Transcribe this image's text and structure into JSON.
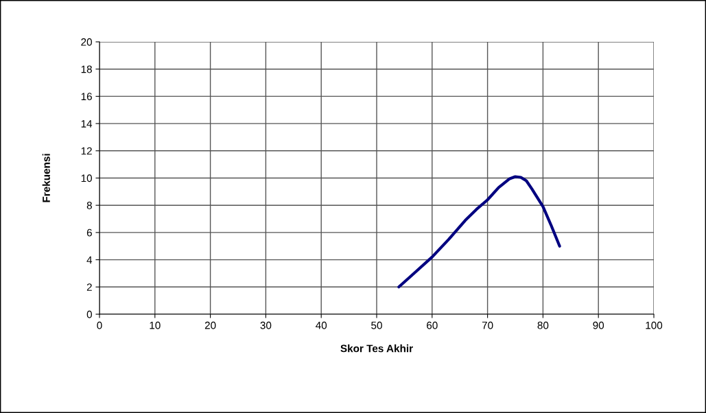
{
  "chart_data": {
    "type": "line",
    "xlabel": "Skor Tes Akhir",
    "ylabel": "Frekuensi",
    "xlim": [
      0,
      100
    ],
    "xticks": [
      0,
      10,
      20,
      30,
      40,
      50,
      60,
      70,
      80,
      90,
      100
    ],
    "ylim": [
      0,
      20
    ],
    "yticks": [
      0,
      2,
      4,
      6,
      8,
      10,
      12,
      14,
      16,
      18,
      20
    ],
    "grid": true,
    "marker": "none",
    "line_style": "solid",
    "series": [
      {
        "color": "#000080",
        "x": [
          54,
          57,
          60,
          63,
          66,
          68,
          70,
          72,
          74,
          75,
          76,
          77,
          78,
          80,
          81.5,
          83
        ],
        "values": [
          2,
          3.1,
          4.2,
          5.5,
          6.9,
          7.7,
          8.4,
          9.3,
          9.95,
          10.1,
          10.05,
          9.8,
          9.2,
          7.9,
          6.5,
          5
        ]
      }
    ]
  }
}
